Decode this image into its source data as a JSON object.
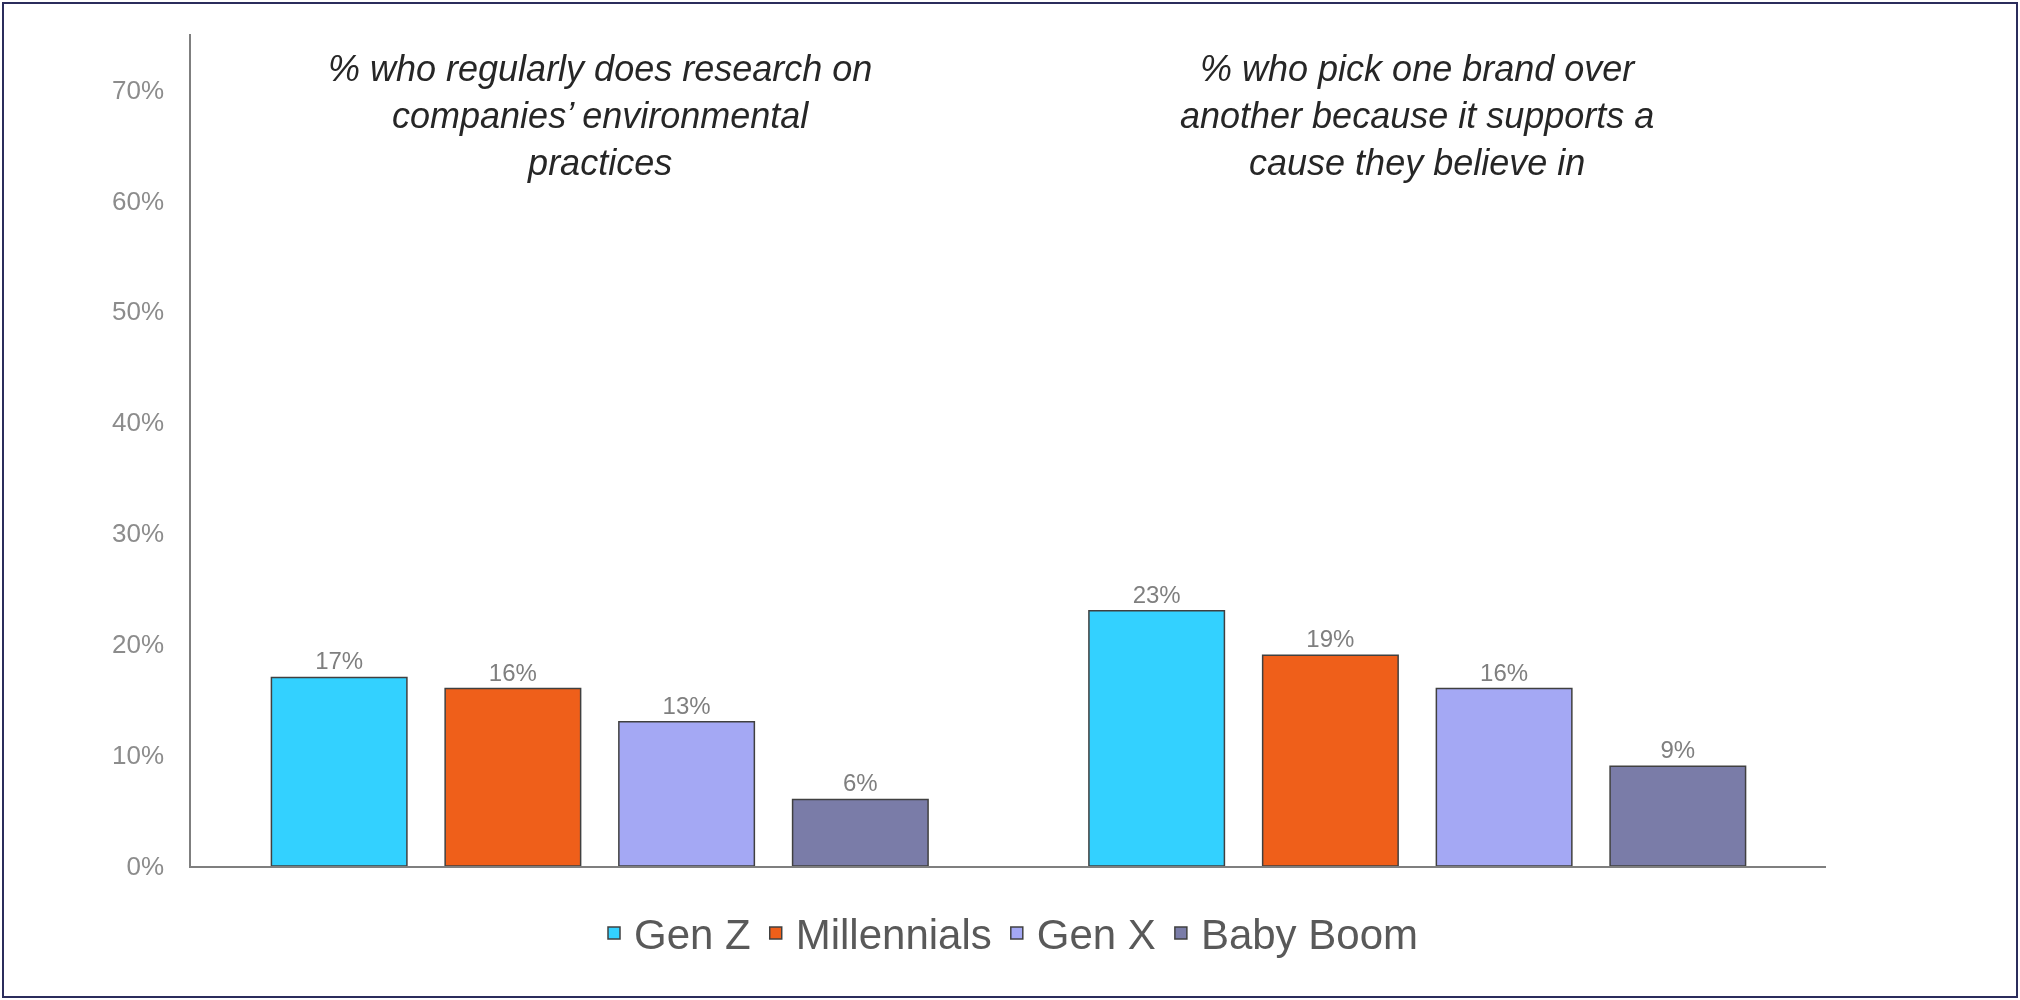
{
  "chart_data": {
    "type": "bar",
    "categories": [
      "% who regularly does research on companies’ environmental practices",
      "% who pick one brand over another because it supports a cause they believe in"
    ],
    "series": [
      {
        "name": "Gen Z",
        "color": "#33d1ff",
        "values": [
          17,
          23
        ],
        "value_labels": [
          "17%",
          "23%"
        ]
      },
      {
        "name": "Millennials",
        "color": "#ef5f1a",
        "values": [
          16,
          19
        ],
        "value_labels": [
          "16%",
          "19%"
        ]
      },
      {
        "name": "Gen X",
        "color": "#a4a8f4",
        "values": [
          13,
          16
        ],
        "value_labels": [
          "13%",
          "16%"
        ]
      },
      {
        "name": "Baby Boom",
        "color": "#7a7ca8",
        "values": [
          6,
          9
        ],
        "value_labels": [
          "6%",
          "9%"
        ]
      }
    ],
    "ylim": [
      0,
      75
    ],
    "yticks": [
      {
        "value": 0,
        "label": "0%"
      },
      {
        "value": 10,
        "label": "10%"
      },
      {
        "value": 20,
        "label": "20%"
      },
      {
        "value": 30,
        "label": "30%"
      },
      {
        "value": 40,
        "label": "40%"
      },
      {
        "value": 50,
        "label": "50%"
      },
      {
        "value": 60,
        "label": "60%"
      },
      {
        "value": 70,
        "label": "70%"
      }
    ],
    "grid": false,
    "legend": "bottom"
  }
}
